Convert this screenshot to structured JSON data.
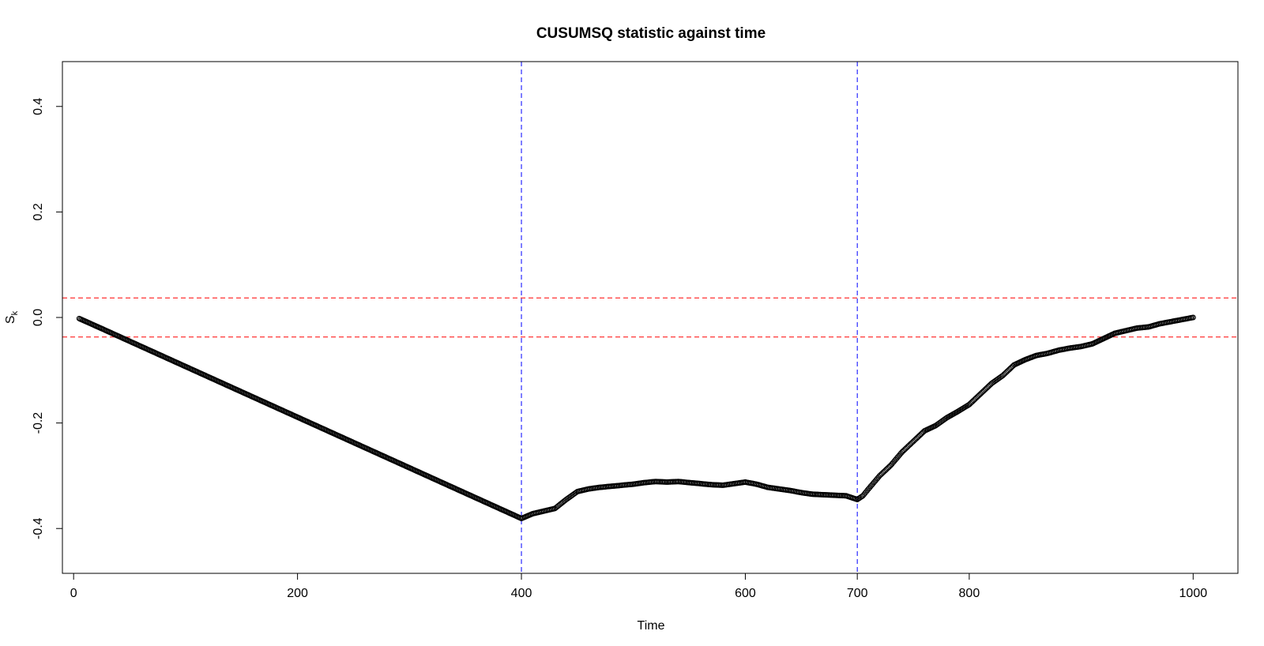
{
  "chart_data": {
    "type": "scatter",
    "title": "CUSUMSQ statistic against time",
    "xlabel": "Time",
    "ylabel": "S",
    "ylabel_sub": "k",
    "xlim": [
      -10,
      1040
    ],
    "ylim": [
      -0.485,
      0.485
    ],
    "x_ticks": [
      0,
      200,
      400,
      600,
      700,
      800,
      1000
    ],
    "x_tick_labels": [
      "0",
      "200",
      "400",
      "600",
      "700",
      "800",
      "1000"
    ],
    "y_ticks": [
      -0.4,
      -0.2,
      0.0,
      0.2,
      0.4
    ],
    "y_tick_labels": [
      "-0.4",
      "-0.2",
      "0.0",
      "0.2",
      "0.4"
    ],
    "grid": false,
    "marker": "open-circle",
    "marker_color": "#000000",
    "hlines": [
      {
        "y": 0.037,
        "color": "#ff0000",
        "style": "dashed"
      },
      {
        "y": -0.037,
        "color": "#ff0000",
        "style": "dashed"
      }
    ],
    "vlines": [
      {
        "x": 400,
        "color": "#0000ff",
        "style": "dashed"
      },
      {
        "x": 700,
        "color": "#0000ff",
        "style": "dashed"
      }
    ],
    "series": [
      {
        "x": [
          5,
          25,
          50,
          100,
          150,
          200,
          250,
          300,
          350,
          400,
          410,
          420,
          430,
          440,
          450,
          460,
          470,
          480,
          490,
          500,
          510,
          520,
          530,
          540,
          550,
          560,
          570,
          580,
          590,
          600,
          610,
          620,
          630,
          640,
          650,
          660,
          670,
          680,
          690,
          700,
          705,
          710,
          720,
          730,
          740,
          750,
          760,
          770,
          780,
          790,
          800,
          810,
          820,
          830,
          840,
          850,
          860,
          870,
          880,
          890,
          900,
          910,
          920,
          930,
          940,
          950,
          960,
          970,
          980,
          990,
          1000
        ],
        "y": [
          -0.002,
          -0.021,
          -0.045,
          -0.093,
          -0.141,
          -0.189,
          -0.237,
          -0.285,
          -0.333,
          -0.381,
          -0.372,
          -0.367,
          -0.362,
          -0.345,
          -0.33,
          -0.325,
          -0.322,
          -0.32,
          -0.318,
          -0.316,
          -0.313,
          -0.311,
          -0.312,
          -0.311,
          -0.313,
          -0.315,
          -0.317,
          -0.318,
          -0.315,
          -0.312,
          -0.316,
          -0.322,
          -0.325,
          -0.328,
          -0.332,
          -0.335,
          -0.336,
          -0.337,
          -0.338,
          -0.345,
          -0.338,
          -0.325,
          -0.3,
          -0.28,
          -0.255,
          -0.235,
          -0.215,
          -0.205,
          -0.19,
          -0.178,
          -0.165,
          -0.145,
          -0.125,
          -0.11,
          -0.09,
          -0.08,
          -0.072,
          -0.068,
          -0.062,
          -0.058,
          -0.055,
          -0.05,
          -0.04,
          -0.03,
          -0.025,
          -0.02,
          -0.018,
          -0.012,
          -0.008,
          -0.004,
          0.0
        ]
      }
    ]
  }
}
